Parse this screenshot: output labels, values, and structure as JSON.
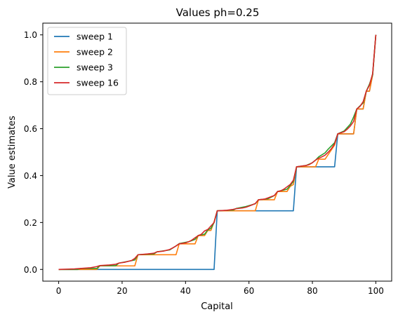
{
  "chart_data": {
    "type": "line",
    "title": "Values ph=0.25",
    "xlabel": "Capital",
    "ylabel": "Value estimates",
    "xlim": [
      -5,
      105
    ],
    "ylim": [
      -0.05,
      1.05
    ],
    "xticks": [
      0,
      20,
      40,
      60,
      80,
      100
    ],
    "xtick_labels": [
      "0",
      "20",
      "40",
      "60",
      "80",
      "100"
    ],
    "yticks": [
      0.0,
      0.2,
      0.4,
      0.6,
      0.8,
      1.0
    ],
    "ytick_labels": [
      "0.0",
      "0.2",
      "0.4",
      "0.6",
      "0.8",
      "1.0"
    ],
    "grid": false,
    "legend_position": "upper-left",
    "series": [
      {
        "name": "sweep 1",
        "color": "#1f77b4",
        "x": [
          0,
          49,
          50,
          74,
          75,
          87,
          88,
          93,
          94,
          96,
          97,
          98,
          99,
          100
        ],
        "y": [
          0,
          0,
          0.25,
          0.25,
          0.4375,
          0.4375,
          0.578,
          0.578,
          0.684,
          0.684,
          0.76,
          0.76,
          0.83,
          1.0
        ]
      },
      {
        "name": "sweep 2",
        "color": "#ff7f0e",
        "x": [
          0,
          12,
          13,
          24,
          25,
          37,
          38,
          43,
          44,
          46,
          47,
          48,
          49,
          50,
          62,
          63,
          68,
          69,
          72,
          73,
          74,
          75,
          81,
          82,
          84,
          85,
          87,
          88,
          93,
          94,
          96,
          97,
          98,
          99,
          100
        ],
        "y": [
          0,
          0,
          0.015,
          0.015,
          0.0625,
          0.0625,
          0.109,
          0.109,
          0.144,
          0.144,
          0.166,
          0.166,
          0.203,
          0.25,
          0.25,
          0.297,
          0.297,
          0.332,
          0.332,
          0.354,
          0.362,
          0.4375,
          0.4375,
          0.47,
          0.47,
          0.49,
          0.53,
          0.578,
          0.578,
          0.684,
          0.684,
          0.76,
          0.76,
          0.83,
          1.0
        ]
      },
      {
        "name": "sweep 3",
        "color": "#2ca02c",
        "x": [
          0,
          6,
          7,
          12,
          13,
          18,
          19,
          24,
          25,
          30,
          31,
          35,
          37,
          38,
          41,
          43,
          44,
          46,
          47,
          48,
          49,
          50,
          55,
          56,
          59,
          62,
          63,
          66,
          68,
          69,
          72,
          73,
          74,
          75,
          78,
          80,
          81,
          82,
          84,
          85,
          87,
          88,
          90,
          92,
          93,
          94,
          96,
          97,
          98,
          99,
          100
        ],
        "y": [
          0,
          0,
          0.004,
          0.004,
          0.016,
          0.016,
          0.027,
          0.04,
          0.0625,
          0.066,
          0.075,
          0.083,
          0.1,
          0.11,
          0.118,
          0.128,
          0.145,
          0.15,
          0.168,
          0.175,
          0.2,
          0.25,
          0.253,
          0.26,
          0.268,
          0.28,
          0.297,
          0.301,
          0.315,
          0.332,
          0.342,
          0.358,
          0.375,
          0.4375,
          0.443,
          0.455,
          0.466,
          0.48,
          0.497,
          0.513,
          0.54,
          0.578,
          0.59,
          0.62,
          0.65,
          0.684,
          0.71,
          0.76,
          0.79,
          0.83,
          1.0
        ]
      },
      {
        "name": "sweep 16",
        "color": "#d62728",
        "x": [
          0,
          5,
          10,
          12,
          13,
          16,
          18,
          19,
          21,
          23,
          24,
          25,
          28,
          30,
          31,
          33,
          35,
          36,
          37,
          38,
          40,
          41,
          42,
          43,
          44,
          45,
          46,
          47,
          48,
          49,
          50,
          53,
          55,
          56,
          58,
          59,
          60,
          61,
          62,
          63,
          65,
          66,
          67,
          68,
          69,
          70,
          71,
          72,
          73,
          74,
          75,
          78,
          79,
          80,
          81,
          82,
          83,
          84,
          85,
          86,
          87,
          88,
          90,
          91,
          92,
          93,
          94,
          95,
          96,
          97,
          98,
          99,
          100
        ],
        "y": [
          0,
          0.002,
          0.007,
          0.012,
          0.0165,
          0.019,
          0.022,
          0.027,
          0.031,
          0.038,
          0.047,
          0.0625,
          0.066,
          0.069,
          0.075,
          0.078,
          0.085,
          0.092,
          0.1,
          0.109,
          0.113,
          0.118,
          0.125,
          0.135,
          0.144,
          0.15,
          0.164,
          0.17,
          0.185,
          0.2,
          0.25,
          0.252,
          0.256,
          0.259,
          0.262,
          0.265,
          0.27,
          0.275,
          0.281,
          0.297,
          0.3,
          0.305,
          0.31,
          0.315,
          0.332,
          0.335,
          0.342,
          0.352,
          0.362,
          0.38,
          0.4375,
          0.443,
          0.447,
          0.455,
          0.466,
          0.474,
          0.48,
          0.487,
          0.5,
          0.515,
          0.535,
          0.578,
          0.587,
          0.598,
          0.612,
          0.631,
          0.684,
          0.695,
          0.715,
          0.76,
          0.785,
          0.835,
          1.0
        ]
      }
    ]
  }
}
